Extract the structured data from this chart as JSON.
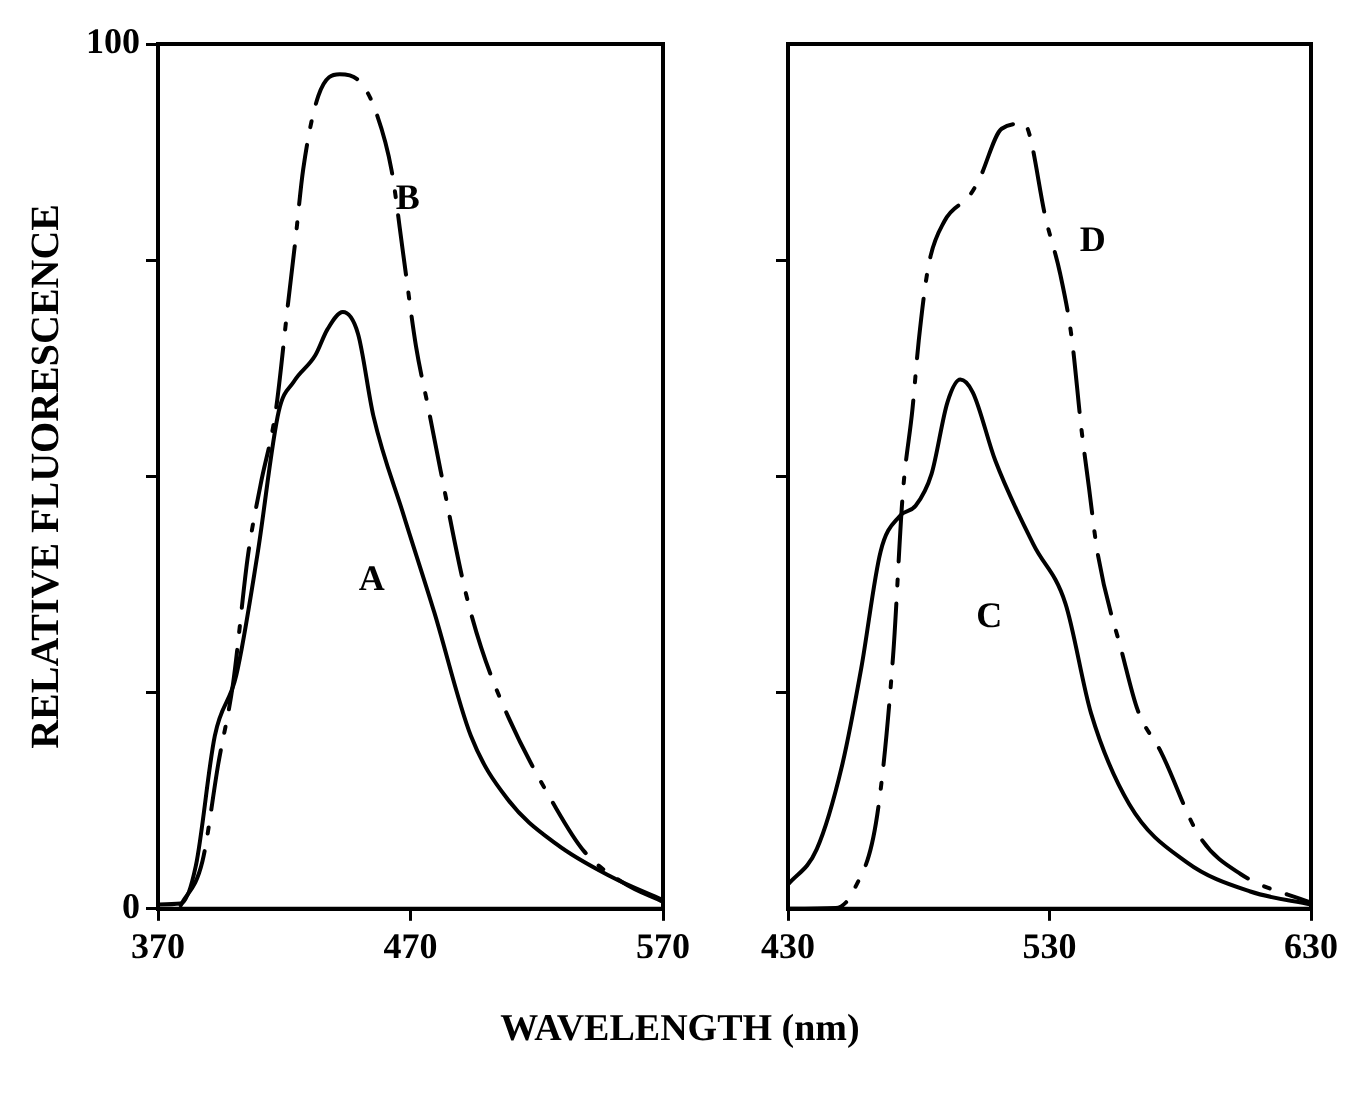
{
  "chart_data": [
    {
      "type": "line",
      "ylabel": "RELATIVE FLUORESCENCE",
      "xlabel": "WAVELENGTH (nm)",
      "xlim": [
        370,
        570
      ],
      "xticks": [
        370,
        470,
        570
      ],
      "ylim": [
        0,
        100
      ],
      "yticks": [
        0,
        {
          "value": 25,
          "label": null
        },
        {
          "value": 50,
          "label": null
        },
        {
          "value": 75,
          "label": null
        },
        100
      ],
      "grid": false,
      "legend": false,
      "marker": "none",
      "series": [
        {
          "name": "A",
          "color": "#000000",
          "line_style": "solid",
          "x": [
            370,
            379,
            385,
            392.5,
            401,
            409.4,
            417.8,
            423.9,
            432.3,
            437.1,
            443.2,
            449.2,
            455.3,
            467.3,
            479.4,
            493.9,
            508.4,
            527.7,
            549.5,
            570
          ],
          "values": [
            0.5,
            0.6,
            5,
            20,
            27,
            41,
            57.5,
            61,
            64,
            67,
            69,
            66.5,
            57,
            45.5,
            34.3,
            20,
            12.7,
            7.5,
            3.7,
            1
          ]
        },
        {
          "name": "B",
          "color": "#000000",
          "line_style": "dashed",
          "x": [
            379,
            387.6,
            393.9,
            399.7,
            405.7,
            410.6,
            416.6,
            421.5,
            424.3,
            427.5,
            433.5,
            442,
            450.4,
            456.5,
            462.5,
            467.3,
            472.2,
            477,
            481.9,
            491.5,
            498,
            508.4,
            527.7,
            538.6,
            554.3,
            570
          ],
          "values": [
            0.4,
            5.5,
            16.8,
            26,
            41,
            49,
            57.5,
            70,
            77,
            85.5,
            94,
            96.5,
            95.5,
            92,
            85.4,
            75.3,
            65,
            58,
            50.7,
            37,
            30.2,
            22.4,
            11.6,
            6.7,
            3,
            0.8
          ]
        }
      ]
    },
    {
      "type": "line",
      "xlim": [
        430,
        630
      ],
      "xticks": [
        430,
        530,
        630
      ],
      "ylim": [
        0,
        100
      ],
      "yticks": [
        {
          "value": 25,
          "label": null
        },
        {
          "value": 50,
          "label": null
        },
        {
          "value": 75,
          "label": null
        }
      ],
      "tick_labels": "x",
      "grid": false,
      "legend": false,
      "marker": "none",
      "series": [
        {
          "name": "C",
          "color": "#000000",
          "line_style": "solid",
          "x": [
            430,
            441,
            450.7,
            458,
            465.4,
            472.7,
            478.8,
            484.9,
            491,
            495.9,
            500.7,
            509.3,
            523.9,
            536.1,
            545.9,
            560.5,
            582.4,
            606.8,
            630
          ],
          "values": [
            2.8,
            6.9,
            16.6,
            27.8,
            41.3,
            45.4,
            46.6,
            50.3,
            58.6,
            61.2,
            59.7,
            51.8,
            42.1,
            35.3,
            22.6,
            12.1,
            5.4,
            2,
            0.5
          ]
        },
        {
          "name": "D",
          "color": "#000000",
          "line_style": "dashed",
          "x": [
            430,
            448.3,
            455.6,
            464.1,
            470.2,
            473.9,
            477.6,
            480,
            483.7,
            489.8,
            499.5,
            503.2,
            511.7,
            520.2,
            528.8,
            534.1,
            538.5,
            542.2,
            545.1,
            548.3,
            558,
            563.7,
            572.7,
            587.3,
            603.2,
            630
          ],
          "values": [
            0,
            0.1,
            2.4,
            10.8,
            29.3,
            48,
            57.8,
            65.7,
            74.3,
            79.5,
            82.5,
            84.4,
            90.2,
            90.8,
            79.5,
            73.4,
            66,
            55.5,
            48.7,
            41.3,
            29.3,
            23,
            18.1,
            8.4,
            4,
            0.7
          ]
        }
      ]
    }
  ]
}
